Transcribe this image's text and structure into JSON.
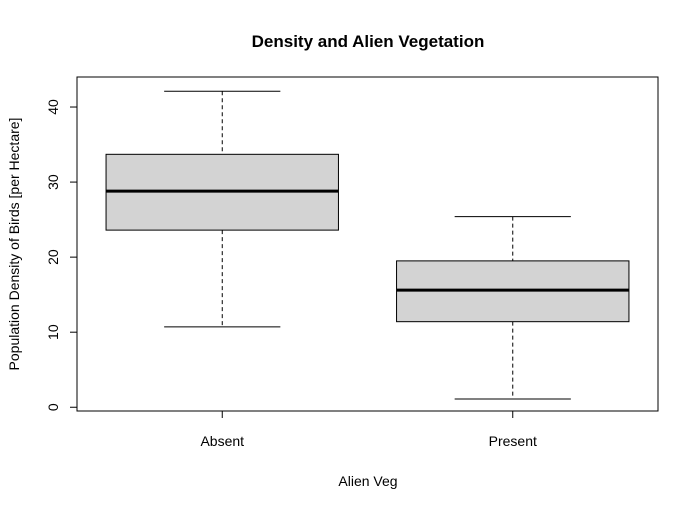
{
  "chart_data": {
    "type": "boxplot",
    "title": "Density and Alien Vegetation",
    "xlabel": "Alien Veg",
    "ylabel": "Population Density of Birds [per Hectare]",
    "categories": [
      "Absent",
      "Present"
    ],
    "boxes": [
      {
        "category": "Absent",
        "min": 10.7,
        "q1": 23.6,
        "median": 28.8,
        "q3": 33.7,
        "max": 42.1
      },
      {
        "category": "Present",
        "min": 1.1,
        "q1": 11.4,
        "median": 15.6,
        "q3": 19.5,
        "max": 25.4
      }
    ],
    "yticks": [
      0,
      10,
      20,
      30,
      40
    ],
    "ylim": [
      -0.5,
      44.0
    ],
    "grid": false,
    "legend": "none",
    "colors": {
      "box_fill": "#d3d3d3",
      "line": "#000000"
    }
  }
}
